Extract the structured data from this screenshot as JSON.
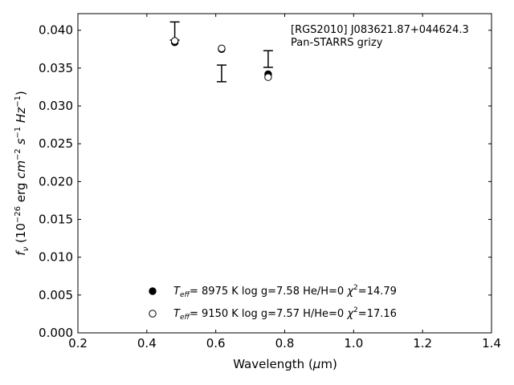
{
  "chart_data": {
    "type": "scatter",
    "title": "",
    "xlabel": "Wavelength (μm)",
    "ylabel": "f_ν (10^−26 erg cm^−2 s^−1 Hz^−1)",
    "xlim": [
      0.2,
      1.4
    ],
    "ylim": [
      0.0,
      0.0422
    ],
    "xticks": [
      "0.2",
      "0.4",
      "0.6",
      "0.8",
      "1.0",
      "1.2",
      "1.4"
    ],
    "yticks": [
      "0.000",
      "0.005",
      "0.010",
      "0.015",
      "0.020",
      "0.025",
      "0.030",
      "0.035",
      "0.040"
    ],
    "grid": false,
    "annotation": [
      "[RGS2010] J083621.87+044624.3",
      "Pan-STARRS grizy"
    ],
    "observed": {
      "x": [
        0.481,
        0.617,
        0.752
      ],
      "y": [
        0.0399,
        0.0343,
        0.0362
      ],
      "err": [
        0.0012,
        0.0011,
        0.0011
      ]
    },
    "series": [
      {
        "marker": "filled-circle",
        "x": [
          0.481,
          0.617,
          0.752
        ],
        "y": [
          0.0384,
          0.0375,
          0.0342
        ],
        "legend": {
          "teff": "8975 K",
          "logg": "log g=7.58",
          "comp": "He/H=0",
          "chi2": "14.79"
        }
      },
      {
        "marker": "open-circle",
        "x": [
          0.481,
          0.617,
          0.752
        ],
        "y": [
          0.0386,
          0.0376,
          0.0338
        ],
        "legend": {
          "teff": "9150 K",
          "logg": "log g=7.57",
          "comp": "H/He=0",
          "chi2": "17.16"
        }
      }
    ]
  }
}
